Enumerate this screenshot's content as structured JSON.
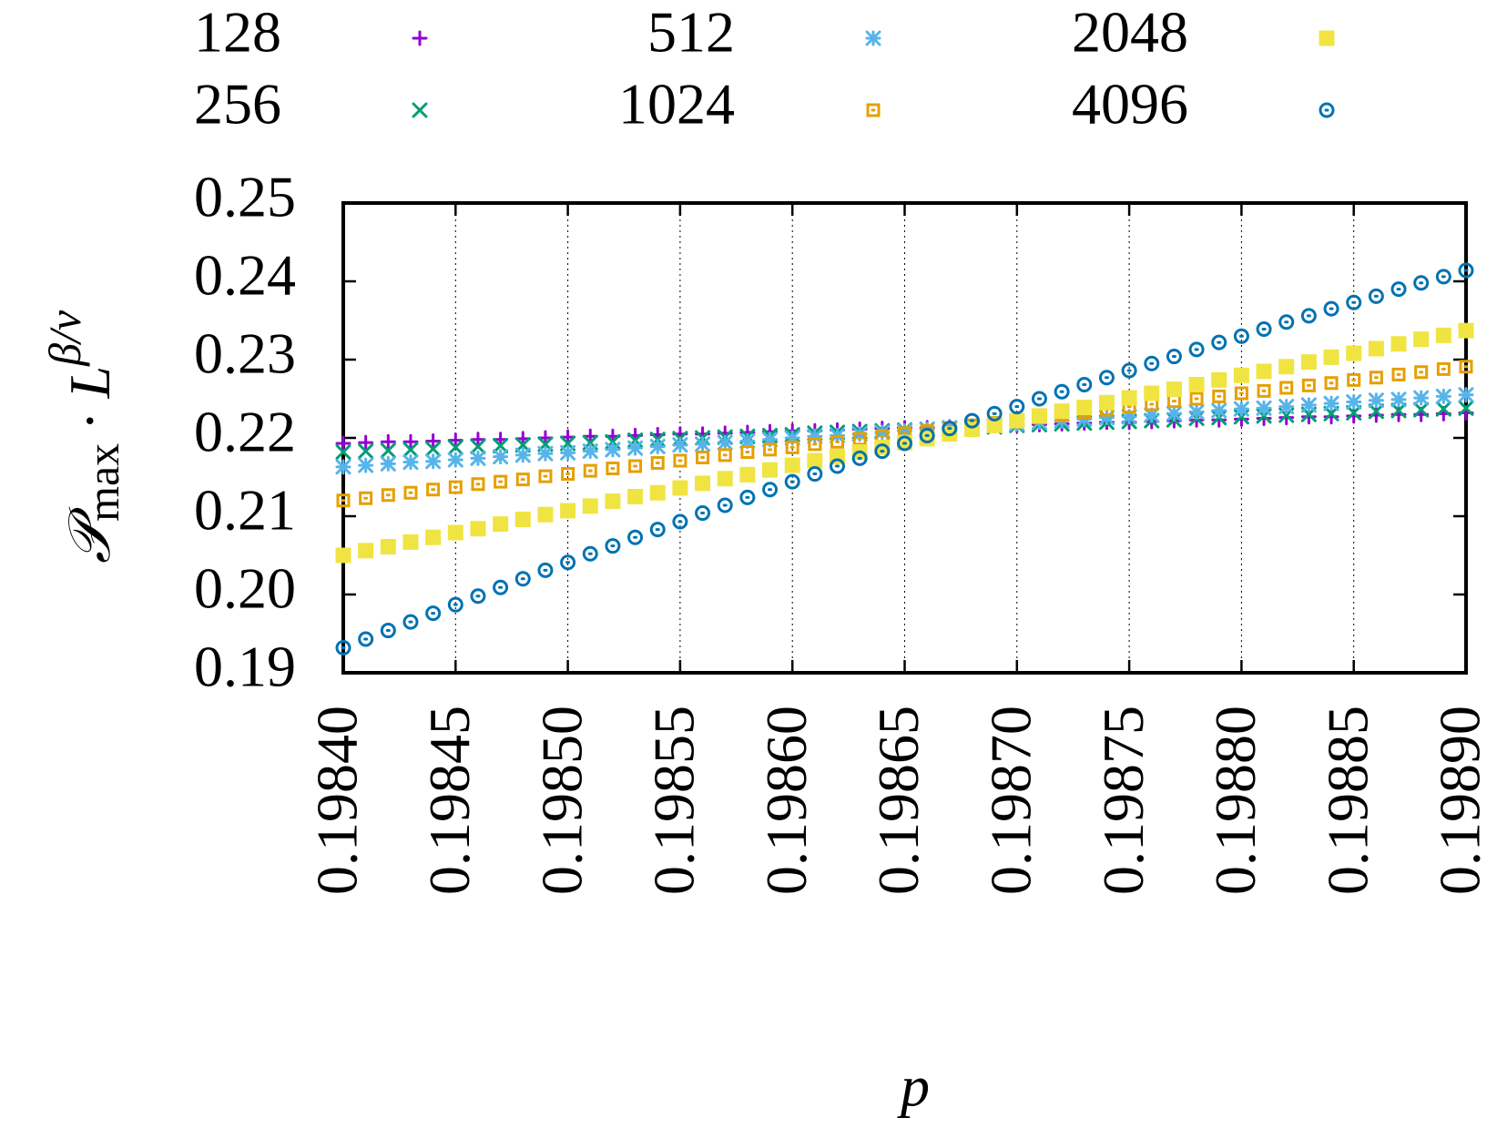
{
  "chart_data": {
    "type": "scatter",
    "xlabel": "p",
    "ylabel": [
      "𝒫",
      "max",
      "·",
      "L",
      "β/ν"
    ],
    "x": [
      0.1984,
      0.19841,
      0.19842,
      0.19843,
      0.19844,
      0.19845,
      0.19846,
      0.19847,
      0.19848,
      0.19849,
      0.1985,
      0.19851,
      0.19852,
      0.19853,
      0.19854,
      0.19855,
      0.19856,
      0.19857,
      0.19858,
      0.19859,
      0.1986,
      0.19861,
      0.19862,
      0.19863,
      0.19864,
      0.19865,
      0.19866,
      0.19867,
      0.19868,
      0.19869,
      0.1987,
      0.19871,
      0.19872,
      0.19873,
      0.19874,
      0.19875,
      0.19876,
      0.19877,
      0.19878,
      0.19879,
      0.1988,
      0.19881,
      0.19882,
      0.19883,
      0.19884,
      0.19885,
      0.19886,
      0.19887,
      0.19888,
      0.19889,
      0.1989
    ],
    "series": [
      {
        "name": "128",
        "color": "#9400d3",
        "marker": "plus",
        "values": [
          0.2193,
          0.2194,
          0.2195,
          0.2195,
          0.2196,
          0.2197,
          0.2198,
          0.2198,
          0.2199,
          0.22,
          0.2201,
          0.2202,
          0.2202,
          0.2203,
          0.2204,
          0.2205,
          0.2205,
          0.2206,
          0.2207,
          0.2208,
          0.2209,
          0.2209,
          0.221,
          0.2211,
          0.2212,
          0.2213,
          0.2213,
          0.2214,
          0.2215,
          0.2216,
          0.2216,
          0.2217,
          0.2218,
          0.2219,
          0.222,
          0.222,
          0.2221,
          0.2222,
          0.2223,
          0.2223,
          0.2224,
          0.2225,
          0.2226,
          0.2227,
          0.2227,
          0.2228,
          0.2229,
          0.223,
          0.223,
          0.2231,
          0.2232
        ]
      },
      {
        "name": "256",
        "color": "#009e73",
        "marker": "cross",
        "values": [
          0.2182,
          0.2183,
          0.2184,
          0.2185,
          0.2186,
          0.2188,
          0.2189,
          0.219,
          0.2191,
          0.2192,
          0.2193,
          0.2194,
          0.2195,
          0.2197,
          0.2198,
          0.2199,
          0.22,
          0.2201,
          0.2202,
          0.2203,
          0.2204,
          0.2206,
          0.2207,
          0.2208,
          0.2209,
          0.221,
          0.2211,
          0.2212,
          0.2213,
          0.2214,
          0.2216,
          0.2217,
          0.2218,
          0.2219,
          0.222,
          0.2221,
          0.2222,
          0.2223,
          0.2225,
          0.2226,
          0.2227,
          0.2228,
          0.2229,
          0.223,
          0.2231,
          0.2232,
          0.2234,
          0.2235,
          0.2236,
          0.2237,
          0.2238
        ]
      },
      {
        "name": "512",
        "color": "#56b4e9",
        "marker": "star",
        "values": [
          0.2163,
          0.2165,
          0.2167,
          0.2169,
          0.217,
          0.2172,
          0.2174,
          0.2176,
          0.2178,
          0.218,
          0.2181,
          0.2183,
          0.2185,
          0.2187,
          0.2189,
          0.2191,
          0.2192,
          0.2194,
          0.2196,
          0.2198,
          0.22,
          0.2202,
          0.2203,
          0.2205,
          0.2207,
          0.2209,
          0.2211,
          0.2213,
          0.2215,
          0.2216,
          0.2218,
          0.222,
          0.2222,
          0.2224,
          0.2226,
          0.2227,
          0.2229,
          0.2231,
          0.2233,
          0.2235,
          0.2237,
          0.2238,
          0.224,
          0.2242,
          0.2244,
          0.2246,
          0.2248,
          0.2249,
          0.2251,
          0.2253,
          0.2255
        ]
      },
      {
        "name": "1024",
        "color": "#e69f00",
        "marker": "square-dot",
        "values": [
          0.212,
          0.2123,
          0.2127,
          0.213,
          0.2134,
          0.2137,
          0.2141,
          0.2144,
          0.2147,
          0.2151,
          0.2154,
          0.2158,
          0.2161,
          0.2164,
          0.2168,
          0.2171,
          0.2175,
          0.2178,
          0.2182,
          0.2185,
          0.2188,
          0.2192,
          0.2195,
          0.2199,
          0.2202,
          0.2206,
          0.2209,
          0.2212,
          0.2216,
          0.2219,
          0.2223,
          0.2226,
          0.2229,
          0.2233,
          0.2236,
          0.224,
          0.2243,
          0.2247,
          0.225,
          0.2253,
          0.2257,
          0.226,
          0.2264,
          0.2267,
          0.227,
          0.2274,
          0.2277,
          0.2281,
          0.2284,
          0.2288,
          0.2291
        ]
      },
      {
        "name": "2048",
        "color": "#f0e442",
        "marker": "filled-square",
        "values": [
          0.205,
          0.2056,
          0.2061,
          0.2067,
          0.2073,
          0.2079,
          0.2084,
          0.209,
          0.2096,
          0.2102,
          0.2107,
          0.2113,
          0.2119,
          0.2125,
          0.213,
          0.2136,
          0.2142,
          0.2148,
          0.2153,
          0.2159,
          0.2165,
          0.2171,
          0.2176,
          0.2182,
          0.2188,
          0.2194,
          0.2199,
          0.2205,
          0.2211,
          0.2216,
          0.2222,
          0.2228,
          0.2234,
          0.2239,
          0.2245,
          0.2251,
          0.2257,
          0.2262,
          0.2268,
          0.2274,
          0.228,
          0.2285,
          0.2291,
          0.2297,
          0.2303,
          0.2308,
          0.2314,
          0.232,
          0.2326,
          0.2331,
          0.2337
        ]
      },
      {
        "name": "4096",
        "color": "#0072b2",
        "marker": "circle-dot",
        "values": [
          0.1932,
          0.1943,
          0.1954,
          0.1965,
          0.1976,
          0.1987,
          0.1998,
          0.2009,
          0.202,
          0.2031,
          0.2041,
          0.2052,
          0.2062,
          0.2073,
          0.2083,
          0.2093,
          0.2104,
          0.2114,
          0.2124,
          0.2134,
          0.2144,
          0.2154,
          0.2164,
          0.2174,
          0.2183,
          0.2193,
          0.2203,
          0.2212,
          0.2222,
          0.2231,
          0.224,
          0.225,
          0.2259,
          0.2268,
          0.2277,
          0.2286,
          0.2295,
          0.2304,
          0.2313,
          0.2322,
          0.233,
          0.2339,
          0.2348,
          0.2356,
          0.2365,
          0.2373,
          0.2381,
          0.239,
          0.2398,
          0.2406,
          0.2414
        ]
      }
    ],
    "xlim": [
      0.1984,
      0.1989
    ],
    "xticks": [
      {
        "value": 0.1984,
        "label": "0.19840"
      },
      0.19845,
      {
        "value": 0.1985,
        "label": "0.19850"
      },
      0.19855,
      {
        "value": 0.1986,
        "label": "0.19860"
      },
      0.19865,
      {
        "value": 0.1987,
        "label": "0.19870"
      },
      0.19875,
      {
        "value": 0.1988,
        "label": "0.19880"
      },
      0.19885,
      {
        "value": 0.1989,
        "label": "0.19890"
      }
    ],
    "ylim": [
      0.19,
      0.25
    ],
    "yticks": [
      0.19,
      {
        "value": 0.2,
        "label": "0.20"
      },
      0.21,
      0.22,
      0.23,
      0.24,
      0.25
    ],
    "grid": "x",
    "legend": "top"
  }
}
